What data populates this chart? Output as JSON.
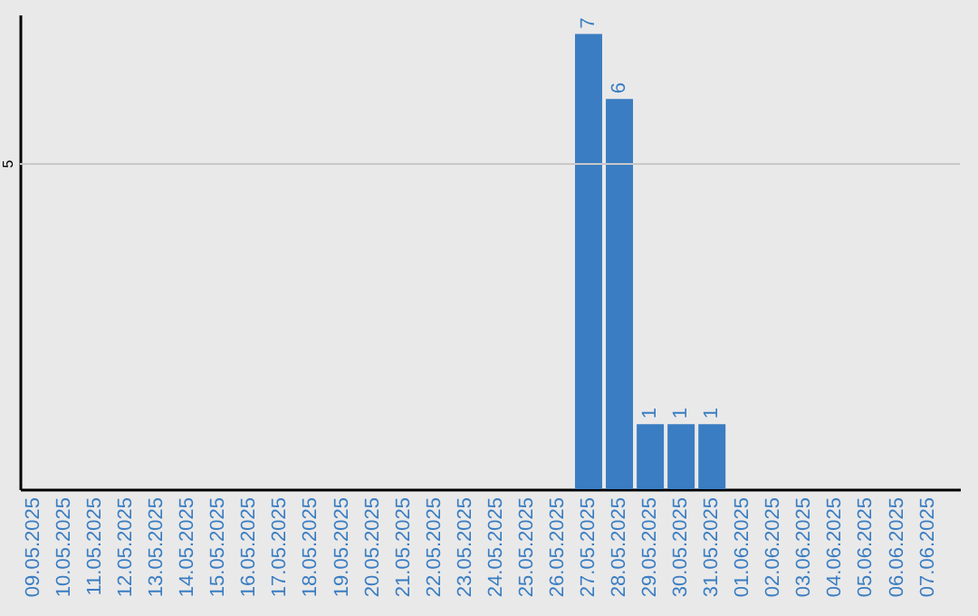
{
  "chart_data": {
    "type": "bar",
    "categories": [
      "09.05.2025",
      "10.05.2025",
      "11.05.2025",
      "12.05.2025",
      "13.05.2025",
      "14.05.2025",
      "15.05.2025",
      "16.05.2025",
      "17.05.2025",
      "18.05.2025",
      "19.05.2025",
      "20.05.2025",
      "21.05.2025",
      "22.05.2025",
      "23.05.2025",
      "24.05.2025",
      "25.05.2025",
      "26.05.2025",
      "27.05.2025",
      "28.05.2025",
      "29.05.2025",
      "30.05.2025",
      "31.05.2025",
      "01.06.2025",
      "02.06.2025",
      "03.06.2025",
      "04.06.2025",
      "05.06.2025",
      "06.06.2025",
      "07.06.2025"
    ],
    "values": [
      null,
      null,
      null,
      null,
      null,
      null,
      null,
      null,
      null,
      null,
      null,
      null,
      null,
      null,
      null,
      null,
      null,
      null,
      7,
      6,
      1,
      1,
      1,
      null,
      null,
      null,
      null,
      null,
      null,
      null
    ],
    "value_labels": [
      null,
      null,
      null,
      null,
      null,
      null,
      null,
      null,
      null,
      null,
      null,
      null,
      null,
      null,
      null,
      null,
      null,
      null,
      "7",
      "6",
      "1",
      "1",
      "1",
      null,
      null,
      null,
      null,
      null,
      null,
      null
    ],
    "color": "#3a7dc2",
    "ylim": [
      0,
      7.3
    ],
    "ref_lines": [
      {
        "axis": "y",
        "value": 5,
        "label": "5",
        "color": "#c8c8c8"
      }
    ]
  }
}
